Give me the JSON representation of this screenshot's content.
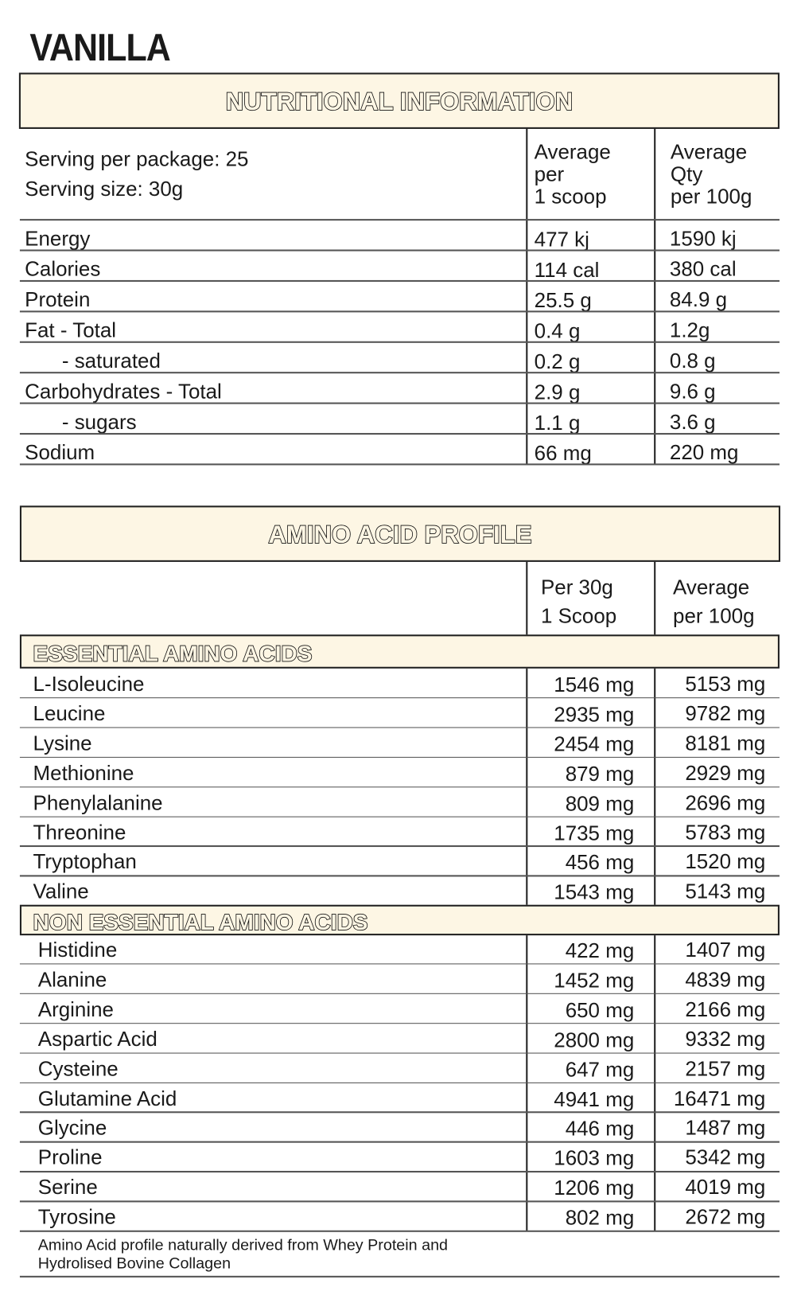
{
  "title": "VANILLA",
  "nutrition": {
    "heading": "NUTRITIONAL INFORMATION",
    "serving_per_package": "Serving per package: 25",
    "serving_size": "Serving size: 30g",
    "col1_header": [
      "Average",
      "per",
      "1 scoop"
    ],
    "col2_header": [
      "Average",
      "Qty",
      "per 100g"
    ],
    "rows": [
      {
        "label": "Energy",
        "indent": false,
        "per_scoop": "477 kj",
        "per_100g": "1590 kj"
      },
      {
        "label": "Calories",
        "indent": false,
        "per_scoop": "114 cal",
        "per_100g": "380 cal"
      },
      {
        "label": "Protein",
        "indent": false,
        "per_scoop": "25.5 g",
        "per_100g": "84.9 g"
      },
      {
        "label": "Fat - Total",
        "indent": false,
        "per_scoop": "0.4 g",
        "per_100g": "1.2g"
      },
      {
        "label": "- saturated",
        "indent": true,
        "per_scoop": "0.2 g",
        "per_100g": "0.8 g"
      },
      {
        "label": "Carbohydrates - Total",
        "indent": false,
        "per_scoop": "2.9 g",
        "per_100g": "9.6 g"
      },
      {
        "label": "- sugars",
        "indent": true,
        "per_scoop": "1.1 g",
        "per_100g": "3.6 g"
      },
      {
        "label": "Sodium",
        "indent": false,
        "per_scoop": "66 mg",
        "per_100g": "220 mg"
      }
    ]
  },
  "amino": {
    "heading": "AMINO ACID PROFILE",
    "col1_header": [
      "Per 30g",
      "1 Scoop"
    ],
    "col2_header": [
      "Average",
      "per 100g"
    ],
    "essential_heading": "ESSENTIAL AMINO ACIDS",
    "essential": [
      {
        "label": "L-Isoleucine",
        "per_scoop": "1546 mg",
        "per_100g": "5153 mg"
      },
      {
        "label": "Leucine",
        "per_scoop": "2935 mg",
        "per_100g": "9782 mg"
      },
      {
        "label": "Lysine",
        "per_scoop": "2454 mg",
        "per_100g": "8181 mg"
      },
      {
        "label": "Methionine",
        "per_scoop": "879 mg",
        "per_100g": "2929 mg"
      },
      {
        "label": "Phenylalanine",
        "per_scoop": "809 mg",
        "per_100g": "2696 mg"
      },
      {
        "label": "Threonine",
        "per_scoop": "1735 mg",
        "per_100g": "5783 mg"
      },
      {
        "label": "Tryptophan",
        "per_scoop": "456 mg",
        "per_100g": "1520 mg"
      },
      {
        "label": "Valine",
        "per_scoop": "1543 mg",
        "per_100g": "5143 mg"
      }
    ],
    "non_essential_heading": "NON ESSENTIAL AMINO ACIDS",
    "non_essential": [
      {
        "label": "Histidine",
        "per_scoop": "422 mg",
        "per_100g": "1407 mg"
      },
      {
        "label": "Alanine",
        "per_scoop": "1452 mg",
        "per_100g": "4839 mg"
      },
      {
        "label": "Arginine",
        "per_scoop": "650 mg",
        "per_100g": "2166 mg"
      },
      {
        "label": "Aspartic Acid",
        "per_scoop": "2800 mg",
        "per_100g": "9332 mg"
      },
      {
        "label": "Cysteine",
        "per_scoop": "647 mg",
        "per_100g": "2157 mg"
      },
      {
        "label": "Glutamine Acid",
        "per_scoop": "4941 mg",
        "per_100g": "16471 mg"
      },
      {
        "label": "Glycine",
        "per_scoop": "446 mg",
        "per_100g": "1487 mg"
      },
      {
        "label": "Proline",
        "per_scoop": "1603 mg",
        "per_100g": "5342 mg"
      },
      {
        "label": "Serine",
        "per_scoop": "1206 mg",
        "per_100g": "4019 mg"
      },
      {
        "label": "Tyrosine",
        "per_scoop": "802 mg",
        "per_100g": "2672 mg"
      }
    ],
    "footnote_line1": "Amino Acid profile naturally derived from Whey Protein and",
    "footnote_line2": "Hydrolised Bovine Collagen"
  },
  "colors": {
    "band": "#fdf6e4",
    "text": "#1a1a1a",
    "rule": "#555555"
  }
}
